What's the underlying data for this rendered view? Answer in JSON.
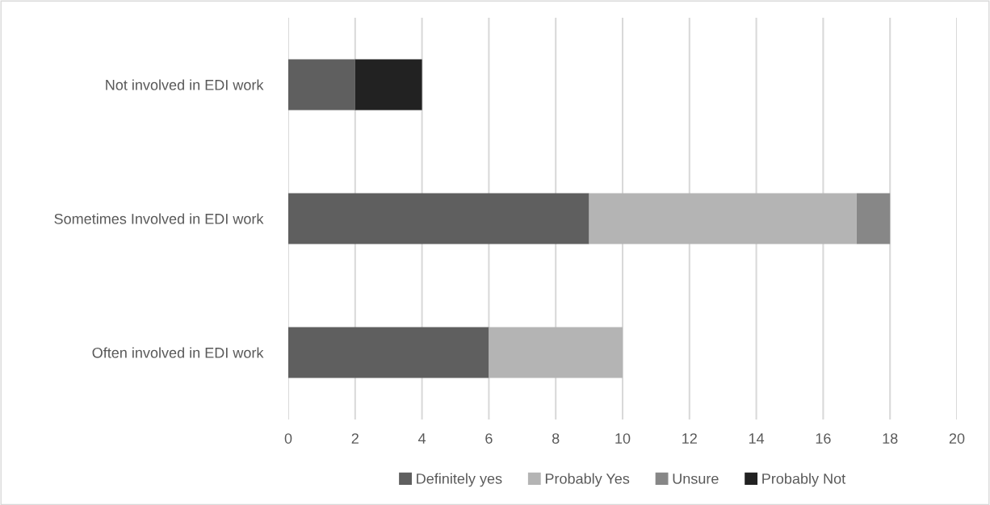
{
  "chart_data": {
    "type": "bar",
    "orientation": "horizontal",
    "stacked": true,
    "categories": [
      "Not involved in EDI work",
      "Sometimes Involved in EDI work",
      "Often involved in EDI work"
    ],
    "series": [
      {
        "name": "Definitely yes",
        "color": "#5f5f5f",
        "values": [
          2,
          9,
          6
        ]
      },
      {
        "name": "Probably Yes",
        "color": "#b4b4b4",
        "values": [
          0,
          8,
          4
        ]
      },
      {
        "name": "Unsure",
        "color": "#878787",
        "values": [
          0,
          1,
          0
        ]
      },
      {
        "name": "Probably Not",
        "color": "#222222",
        "values": [
          2,
          0,
          0
        ]
      }
    ],
    "xlim": [
      0,
      20
    ],
    "xticks": [
      0,
      2,
      4,
      6,
      8,
      10,
      12,
      14,
      16,
      18,
      20
    ],
    "grid": "x",
    "legend": "bottom"
  }
}
